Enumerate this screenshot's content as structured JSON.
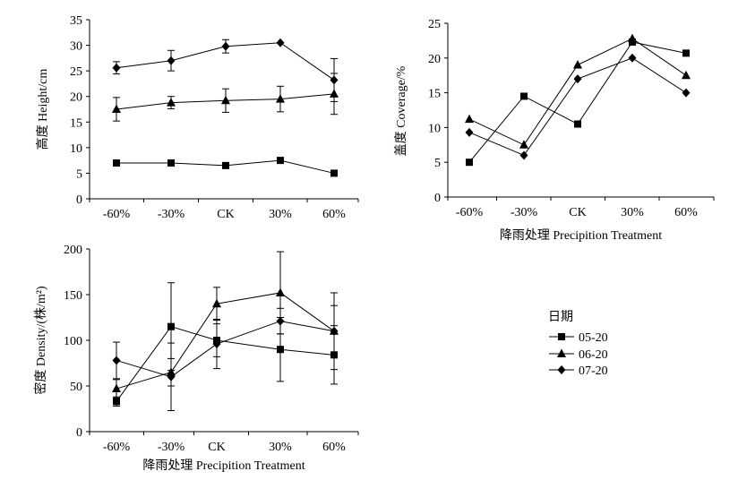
{
  "chart_data": [
    {
      "type": "line",
      "ylabel": "高度 Height/cm",
      "xlabel": "",
      "categories": [
        "-60%",
        "-30%",
        "CK",
        "30%",
        "60%"
      ],
      "x": [
        -60,
        -30,
        0,
        30,
        60
      ],
      "ylim": [
        0,
        35
      ],
      "yticks": [
        0,
        5,
        10,
        15,
        20,
        25,
        30,
        35
      ],
      "grid": false,
      "series": [
        {
          "name": "05-20",
          "marker": "square",
          "values": [
            7,
            7,
            6.5,
            7.5,
            5
          ],
          "errors": [
            0,
            0,
            0,
            0,
            0
          ]
        },
        {
          "name": "06-20",
          "marker": "triangle",
          "values": [
            17.5,
            18.8,
            19.2,
            19.5,
            20.5
          ],
          "errors": [
            2.3,
            1.2,
            2.3,
            2.5,
            4
          ]
        },
        {
          "name": "07-20",
          "marker": "diamond",
          "values": [
            25.6,
            27,
            29.8,
            30.5,
            23.2
          ],
          "errors": [
            1.2,
            2,
            1.3,
            0,
            4.2
          ]
        }
      ]
    },
    {
      "type": "line",
      "ylabel": "盖度 Coverage/%",
      "xlabel": "降雨处理 Precipition Treatment",
      "categories": [
        "-60%",
        "-30%",
        "CK",
        "30%",
        "60%"
      ],
      "x": [
        -60,
        -30,
        0,
        30,
        60
      ],
      "ylim": [
        0,
        25
      ],
      "yticks": [
        0,
        5,
        10,
        15,
        20,
        25
      ],
      "grid": false,
      "series": [
        {
          "name": "05-20",
          "marker": "square",
          "values": [
            5,
            14.5,
            10.5,
            22.3,
            20.7
          ]
        },
        {
          "name": "06-20",
          "marker": "triangle",
          "values": [
            11.2,
            7.5,
            19,
            22.8,
            17.5
          ]
        },
        {
          "name": "07-20",
          "marker": "diamond",
          "values": [
            9.3,
            6,
            17,
            20,
            15
          ]
        }
      ]
    },
    {
      "type": "line",
      "ylabel": "密度 Density/(株/m²)",
      "xlabel": "降雨处理 Precipition Treatment",
      "categories": [
        "-60%",
        "-30%",
        "CK",
        "30%",
        "60%"
      ],
      "x": [
        -60,
        -30,
        0,
        30,
        60
      ],
      "ylim": [
        0,
        200
      ],
      "yticks": [
        0,
        50,
        100,
        150,
        200
      ],
      "grid": false,
      "series": [
        {
          "name": "05-20",
          "marker": "square",
          "values": [
            33,
            115,
            100,
            90,
            84
          ],
          "errors": [
            5,
            48,
            18,
            35,
            32
          ]
        },
        {
          "name": "06-20",
          "marker": "triangle",
          "values": [
            47,
            65,
            140,
            152,
            110
          ],
          "errors": [
            10,
            15,
            18,
            45,
            42
          ]
        },
        {
          "name": "07-20",
          "marker": "diamond",
          "values": [
            78,
            60,
            96,
            121,
            110
          ],
          "errors": [
            20,
            37,
            27,
            14,
            28
          ]
        }
      ]
    }
  ],
  "legend": {
    "title": "日期",
    "entries": [
      {
        "label": "05-20",
        "marker": "square"
      },
      {
        "label": "06-20",
        "marker": "triangle"
      },
      {
        "label": "07-20",
        "marker": "diamond"
      }
    ]
  }
}
